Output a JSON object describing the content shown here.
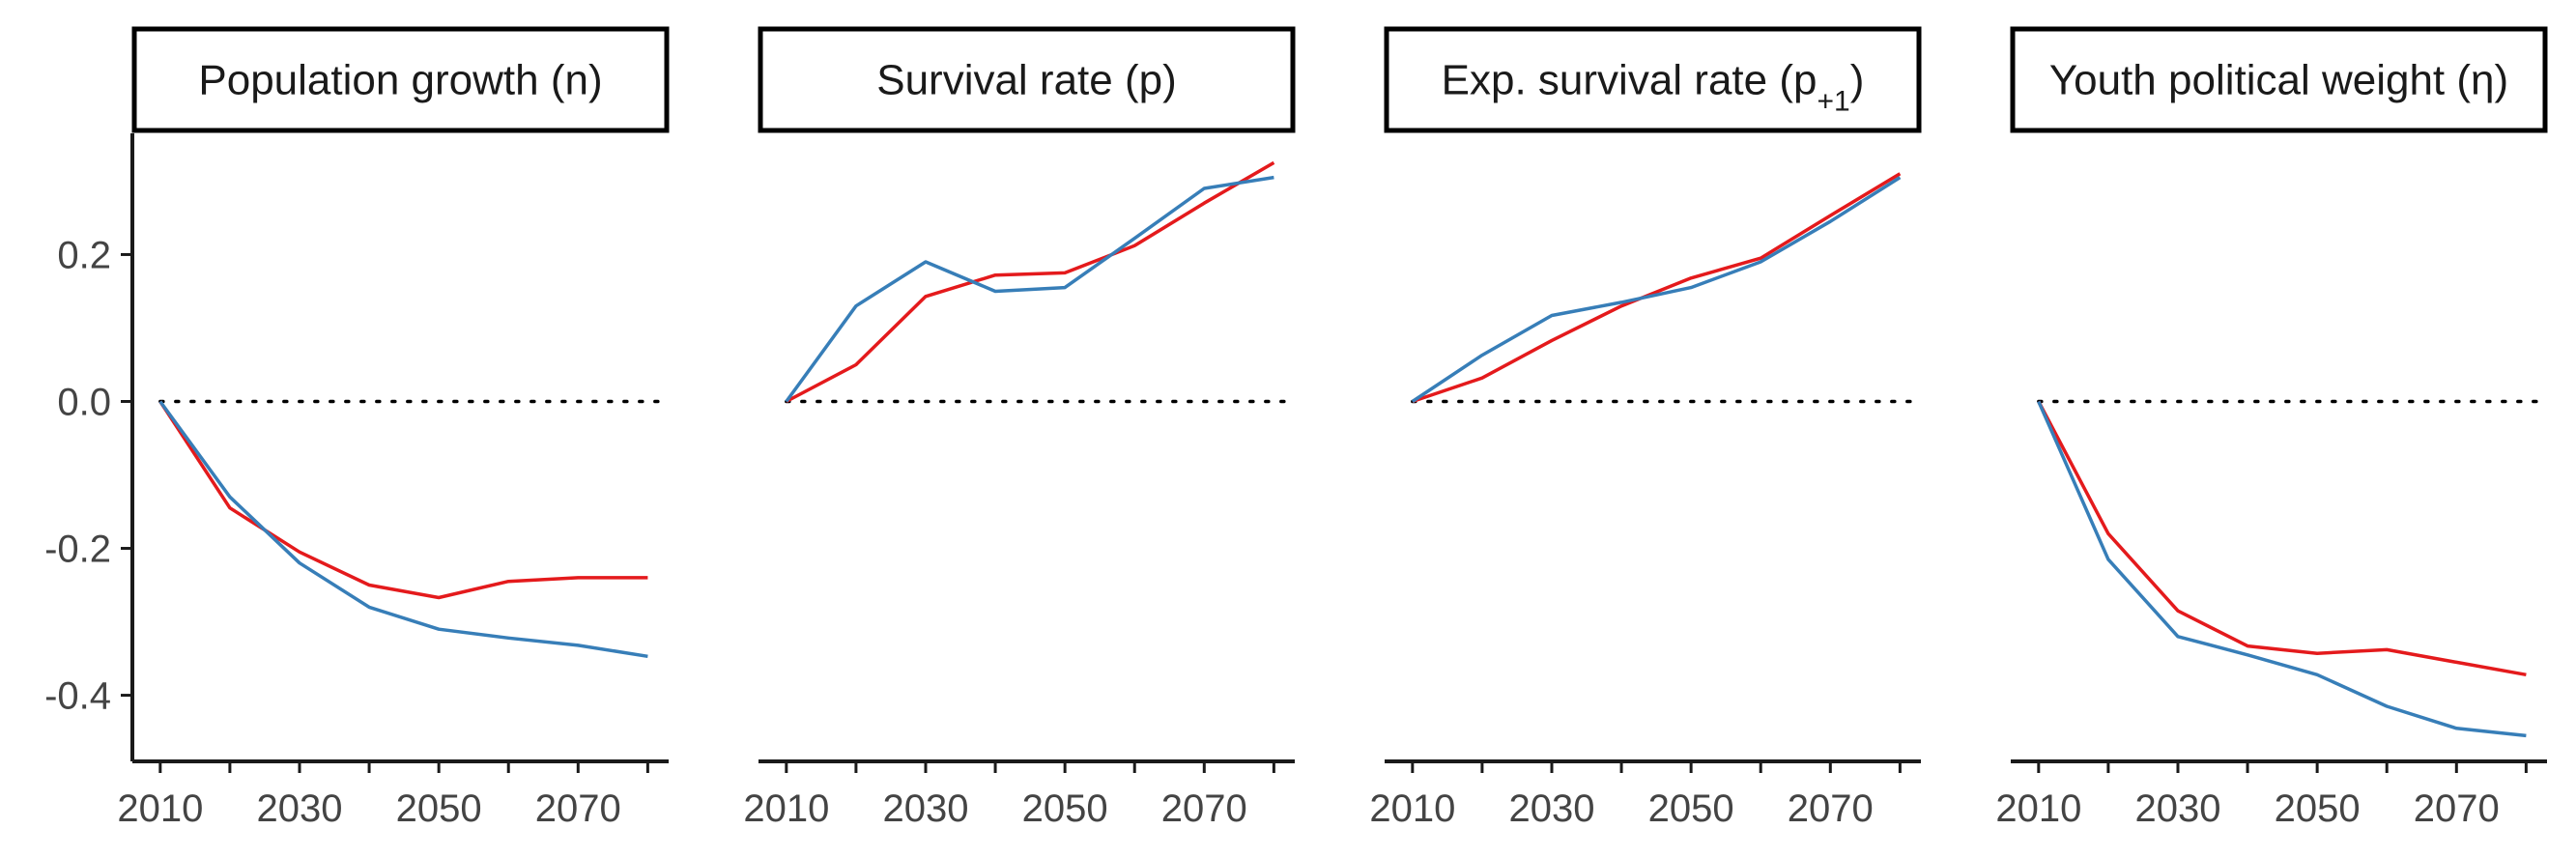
{
  "chart_data": {
    "type": "line",
    "x": [
      2010,
      2020,
      2030,
      2040,
      2050,
      2060,
      2070,
      2080
    ],
    "x_tick_labels": [
      "2010",
      "2030",
      "2050",
      "2070"
    ],
    "x_tick_values": [
      2010,
      2030,
      2050,
      2070
    ],
    "x_minor_ticks": [
      2010,
      2020,
      2030,
      2040,
      2050,
      2060,
      2070,
      2080
    ],
    "xlim": [
      2006,
      2083
    ],
    "ylim": [
      -0.49,
      0.365
    ],
    "y_tick_values": [
      0.2,
      0.0,
      -0.2,
      -0.4
    ],
    "y_tick_labels": [
      "0.2",
      "0.0",
      "-0.2",
      "-0.4"
    ],
    "reference_line": {
      "y": 0,
      "style": "dotted"
    },
    "grid": false,
    "series_colors": [
      "#E41A1C",
      "#377EB8"
    ],
    "panels": [
      {
        "title": "Population growth (n)",
        "series": [
          {
            "color": "#E41A1C",
            "values": [
              0.0,
              -0.145,
              -0.205,
              -0.25,
              -0.267,
              -0.245,
              -0.24,
              -0.24
            ]
          },
          {
            "color": "#377EB8",
            "values": [
              0.0,
              -0.13,
              -0.22,
              -0.28,
              -0.31,
              -0.322,
              -0.332,
              -0.347
            ]
          }
        ]
      },
      {
        "title": "Survival rate (p)",
        "series": [
          {
            "color": "#E41A1C",
            "values": [
              0.0,
              0.05,
              0.143,
              0.172,
              0.175,
              0.212,
              0.27,
              0.325
            ]
          },
          {
            "color": "#377EB8",
            "values": [
              0.0,
              0.13,
              0.19,
              0.15,
              0.155,
              0.222,
              0.29,
              0.305
            ]
          }
        ]
      },
      {
        "title": "Exp. survival rate (p+1)",
        "series": [
          {
            "color": "#E41A1C",
            "values": [
              0.0,
              0.032,
              0.083,
              0.13,
              0.168,
              0.195,
              0.253,
              0.31
            ]
          },
          {
            "color": "#377EB8",
            "values": [
              0.0,
              0.063,
              0.117,
              0.135,
              0.155,
              0.19,
              0.245,
              0.305
            ]
          }
        ]
      },
      {
        "title": "Youth political weight (η)",
        "series": [
          {
            "color": "#E41A1C",
            "values": [
              0.0,
              -0.18,
              -0.285,
              -0.333,
              -0.343,
              -0.338,
              -0.355,
              -0.372
            ]
          },
          {
            "color": "#377EB8",
            "values": [
              0.0,
              -0.215,
              -0.32,
              -0.345,
              -0.372,
              -0.415,
              -0.445,
              -0.455
            ]
          }
        ]
      }
    ]
  }
}
